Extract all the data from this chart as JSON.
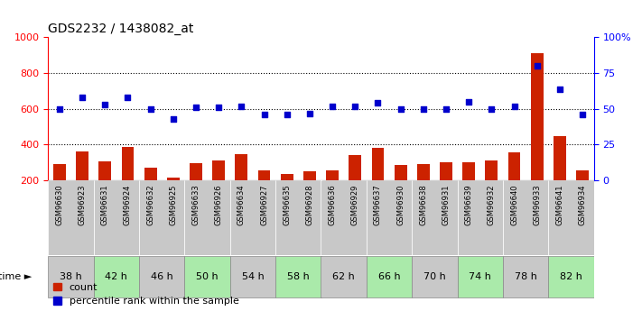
{
  "title": "GDS2232 / 1438082_at",
  "samples": [
    "GSM96630",
    "GSM96923",
    "GSM96631",
    "GSM96924",
    "GSM96632",
    "GSM96925",
    "GSM96633",
    "GSM96926",
    "GSM96634",
    "GSM96927",
    "GSM96635",
    "GSM96928",
    "GSM96636",
    "GSM96929",
    "GSM96637",
    "GSM96930",
    "GSM96638",
    "GSM96931",
    "GSM96639",
    "GSM96932",
    "GSM96640",
    "GSM96933",
    "GSM96641",
    "GSM96934"
  ],
  "time_groups": [
    {
      "label": "38 h",
      "start": 0,
      "end": 1,
      "color": "#c8c8c8"
    },
    {
      "label": "42 h",
      "start": 2,
      "end": 3,
      "color": "#aaeaaa"
    },
    {
      "label": "46 h",
      "start": 4,
      "end": 5,
      "color": "#c8c8c8"
    },
    {
      "label": "50 h",
      "start": 6,
      "end": 7,
      "color": "#aaeaaa"
    },
    {
      "label": "54 h",
      "start": 8,
      "end": 9,
      "color": "#c8c8c8"
    },
    {
      "label": "58 h",
      "start": 10,
      "end": 11,
      "color": "#aaeaaa"
    },
    {
      "label": "62 h",
      "start": 12,
      "end": 13,
      "color": "#c8c8c8"
    },
    {
      "label": "66 h",
      "start": 14,
      "end": 15,
      "color": "#aaeaaa"
    },
    {
      "label": "70 h",
      "start": 16,
      "end": 17,
      "color": "#c8c8c8"
    },
    {
      "label": "74 h",
      "start": 18,
      "end": 19,
      "color": "#aaeaaa"
    },
    {
      "label": "78 h",
      "start": 20,
      "end": 21,
      "color": "#c8c8c8"
    },
    {
      "label": "82 h",
      "start": 22,
      "end": 23,
      "color": "#aaeaaa"
    }
  ],
  "bar_values": [
    290,
    360,
    305,
    385,
    270,
    215,
    295,
    310,
    345,
    255,
    235,
    250,
    255,
    340,
    380,
    285,
    293,
    300,
    300,
    310,
    355,
    910,
    450,
    255
  ],
  "dot_pct": [
    50,
    58,
    53,
    58,
    50,
    43,
    51,
    51,
    52,
    46,
    46,
    47,
    52,
    52,
    54,
    50,
    50,
    50,
    55,
    50,
    52,
    80,
    64,
    46
  ],
  "bar_color": "#cc2200",
  "dot_color": "#0000cc",
  "ylim_left": [
    200,
    1000
  ],
  "ylim_right": [
    0,
    100
  ],
  "yticks_left": [
    200,
    400,
    600,
    800,
    1000
  ],
  "yticks_right": [
    0,
    25,
    50,
    75,
    100
  ],
  "ytick_labels_right": [
    "0",
    "25",
    "50",
    "75",
    "100%"
  ],
  "hlines": [
    400,
    600,
    800
  ],
  "legend_count": "count",
  "legend_pct": "percentile rank within the sample",
  "sample_bg_color": "#c8c8c8",
  "title_fontsize": 10,
  "figsize": [
    7.11,
    3.45
  ],
  "dpi": 100
}
